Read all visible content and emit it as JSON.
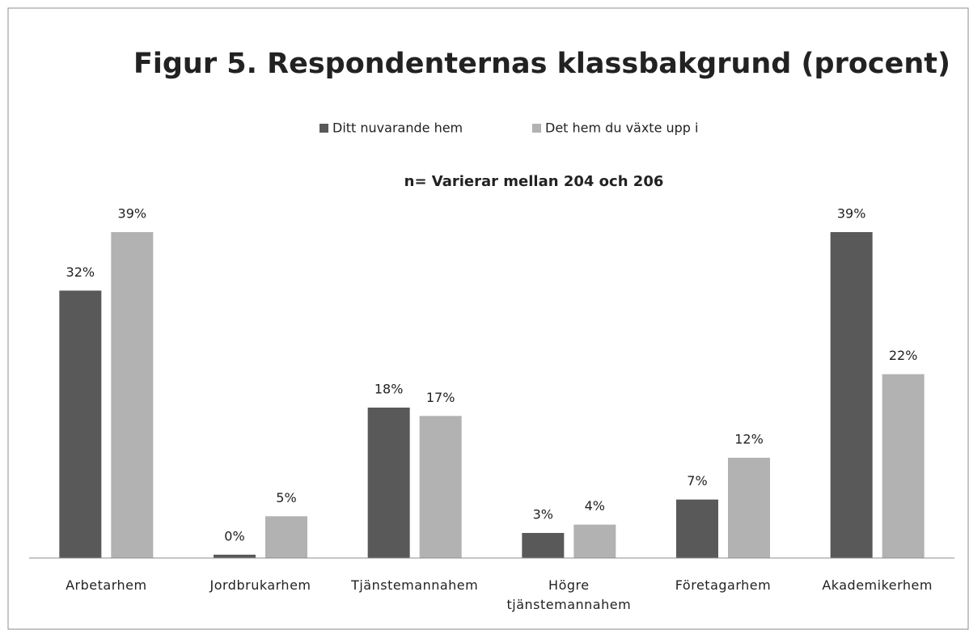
{
  "chart_data": {
    "type": "bar",
    "title": "Figur 5. Respondenternas klassbakgrund (procent)",
    "subtitle": "n= Varierar mellan 204 och 206",
    "categories": [
      "Arbetarhem",
      "Jordbrukarhem",
      "Tjänstemannahem",
      "Högre tjänstemannahem",
      "Företagarhem",
      "Akademikerhem"
    ],
    "series": [
      {
        "name": "Ditt nuvarande hem",
        "color": "#595959",
        "values": [
          32,
          0.4,
          18,
          3,
          7,
          39
        ],
        "value_labels": [
          "32%",
          "0%",
          "18%",
          "3%",
          "7%",
          "39%"
        ]
      },
      {
        "name": "Det hem du växte upp i",
        "color": "#b2b2b2",
        "values": [
          39,
          5,
          17,
          4,
          12,
          22
        ],
        "value_labels": [
          "39%",
          "5%",
          "17%",
          "4%",
          "12%",
          "22%"
        ]
      }
    ],
    "legend": "top"
  }
}
